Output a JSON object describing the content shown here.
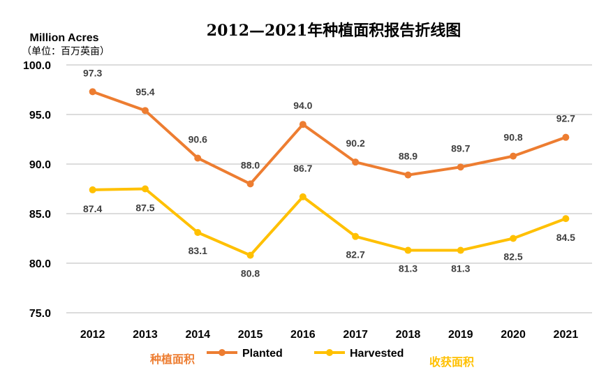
{
  "chart_data": {
    "type": "line",
    "title": "2012—2021年种植面积报告折线图",
    "ylabel": "Million Acres",
    "ylabel_cn": "（单位：百万英亩）",
    "categories": [
      "2012",
      "2013",
      "2014",
      "2015",
      "2016",
      "2017",
      "2018",
      "2019",
      "2020",
      "2021"
    ],
    "ylim": [
      75.0,
      100.0
    ],
    "yticks": [
      "100.0",
      "95.0",
      "90.0",
      "85.0",
      "80.0",
      "75.0"
    ],
    "grid": true,
    "legend_position": "bottom",
    "series": [
      {
        "name": "Planted",
        "color": "#ED7D31",
        "values": [
          97.3,
          95.4,
          90.6,
          88.0,
          94.0,
          90.2,
          88.9,
          89.7,
          90.8,
          92.7
        ],
        "labels": [
          "97.3",
          "95.4",
          "90.6",
          "88.0",
          "94.0",
          "90.2",
          "88.9",
          "89.7",
          "90.8",
          "92.7"
        ],
        "annotation": "种植面积"
      },
      {
        "name": "Harvested",
        "color": "#FFC000",
        "values": [
          87.4,
          87.5,
          83.1,
          80.8,
          86.7,
          82.7,
          81.3,
          81.3,
          82.5,
          84.5
        ],
        "labels": [
          "87.4",
          "87.5",
          "83.1",
          "80.8",
          "86.7",
          "82.7",
          "81.3",
          "81.3",
          "82.5",
          "84.5"
        ],
        "annotation": "收获面积"
      }
    ]
  }
}
